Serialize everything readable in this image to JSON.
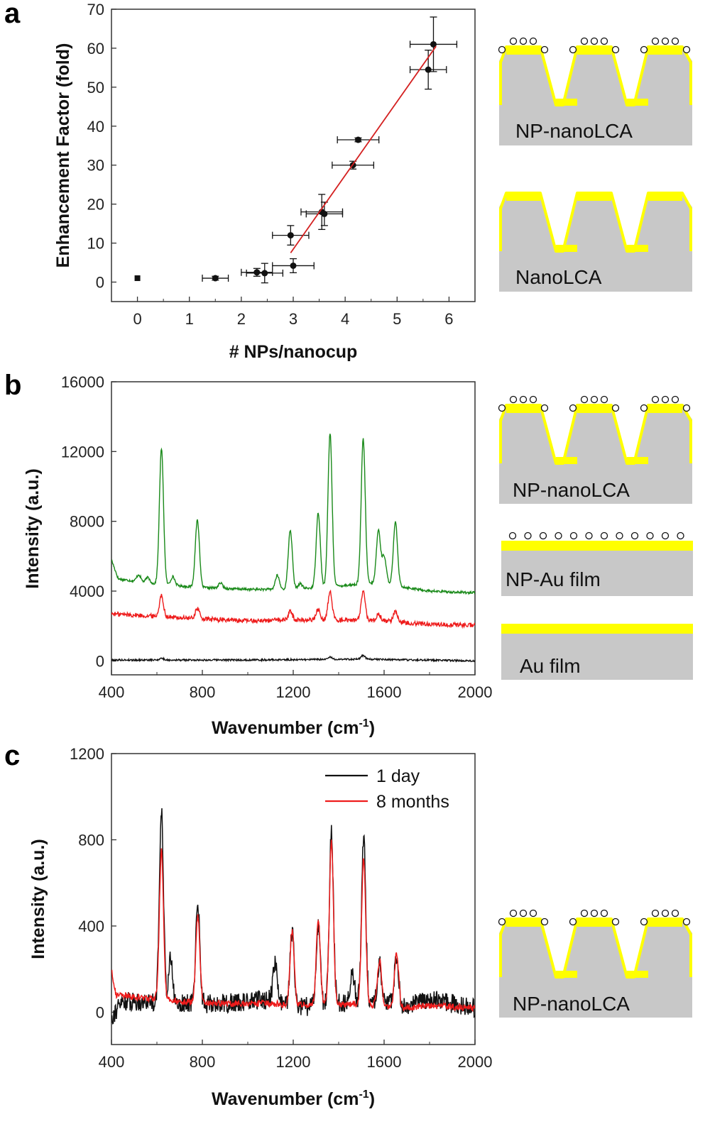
{
  "panels": {
    "a": "a",
    "b": "b",
    "c": "c"
  },
  "schematic_labels": {
    "np_nanolca": "NP-nanoLCA",
    "nanolca": "NanoLCA",
    "np_au_film": "NP-Au film",
    "au_film": "Au film"
  },
  "colors": {
    "green": "#1a8a1a",
    "red": "#ee1c1c",
    "black": "#111111",
    "gold": "#ffff00",
    "substrate": "#c8c8c8",
    "fit_line": "#d42020"
  },
  "chart_data": [
    {
      "id": "a",
      "type": "scatter",
      "xlabel": "# NPs/nanocup",
      "ylabel": "Enhancement Factor (fold)",
      "xlim": [
        -0.5,
        6.5
      ],
      "ylim": [
        -5,
        70
      ],
      "xticks": [
        0,
        1,
        2,
        3,
        4,
        5,
        6
      ],
      "yticks": [
        0,
        10,
        20,
        30,
        40,
        50,
        60,
        70
      ],
      "points": [
        {
          "x": 0,
          "y": 1,
          "xerr": 0,
          "yerr": 0
        },
        {
          "x": 1.5,
          "y": 1,
          "xerr": 0.25,
          "yerr": 0.5
        },
        {
          "x": 2.3,
          "y": 2.5,
          "xerr": 0.3,
          "yerr": 1
        },
        {
          "x": 2.45,
          "y": 2.3,
          "xerr": 0.35,
          "yerr": 2.5
        },
        {
          "x": 3.0,
          "y": 4.2,
          "xerr": 0.4,
          "yerr": 1.8
        },
        {
          "x": 2.95,
          "y": 12,
          "xerr": 0.35,
          "yerr": 2.5
        },
        {
          "x": 3.55,
          "y": 18,
          "xerr": 0.4,
          "yerr": 4.5
        },
        {
          "x": 3.6,
          "y": 17.5,
          "xerr": 0.35,
          "yerr": 3
        },
        {
          "x": 4.15,
          "y": 30,
          "xerr": 0.4,
          "yerr": 1
        },
        {
          "x": 4.25,
          "y": 36.5,
          "xerr": 0.4,
          "yerr": 0.5
        },
        {
          "x": 5.6,
          "y": 54.5,
          "xerr": 0.35,
          "yerr": 5
        },
        {
          "x": 5.7,
          "y": 61,
          "xerr": 0.45,
          "yerr": 7
        }
      ],
      "fit": {
        "x": [
          2.95,
          5.75
        ],
        "y": [
          7.5,
          60.5
        ]
      }
    },
    {
      "id": "b",
      "type": "line",
      "xlabel": "Wavenumber (cm-1)",
      "ylabel": "Intensity (a.u.)",
      "xlim": [
        400,
        2000
      ],
      "ylim": [
        -800,
        16000
      ],
      "xticks": [
        400,
        800,
        1200,
        1600,
        2000
      ],
      "yticks": [
        0,
        4000,
        8000,
        12000,
        16000
      ],
      "series": [
        {
          "color": "green",
          "baseline": [
            [
              400,
              5800
            ],
            [
              430,
              4700
            ],
            [
              600,
              4400
            ],
            [
              800,
              4200
            ],
            [
              1000,
              4100
            ],
            [
              1200,
              4100
            ],
            [
              1400,
              4300
            ],
            [
              1500,
              4400
            ],
            [
              1600,
              4500
            ],
            [
              1700,
              4200
            ],
            [
              1800,
              4000
            ],
            [
              2000,
              3900
            ]
          ],
          "peaks": [
            [
              620,
              7800
            ],
            [
              778,
              3900
            ],
            [
              1130,
              800
            ],
            [
              1187,
              3400
            ],
            [
              1310,
              4300
            ],
            [
              1362,
              8800
            ],
            [
              1508,
              8300
            ],
            [
              1575,
              3000
            ],
            [
              1600,
              1500
            ],
            [
              1650,
              3600
            ],
            [
              520,
              400
            ],
            [
              560,
              300
            ],
            [
              670,
              500
            ],
            [
              880,
              300
            ],
            [
              1230,
              300
            ]
          ],
          "noise": 70
        },
        {
          "color": "red",
          "baseline": [
            [
              400,
              2700
            ],
            [
              600,
              2550
            ],
            [
              800,
              2400
            ],
            [
              1000,
              2300
            ],
            [
              1200,
              2350
            ],
            [
              1400,
              2350
            ],
            [
              1600,
              2300
            ],
            [
              1800,
              2100
            ],
            [
              2000,
              2050
            ]
          ],
          "peaks": [
            [
              620,
              1200
            ],
            [
              778,
              600
            ],
            [
              1187,
              500
            ],
            [
              1310,
              600
            ],
            [
              1362,
              1600
            ],
            [
              1508,
              1600
            ],
            [
              1575,
              400
            ],
            [
              1650,
              600
            ]
          ],
          "noise": 130
        },
        {
          "color": "black",
          "baseline": [
            [
              400,
              50
            ],
            [
              1000,
              50
            ],
            [
              1500,
              100
            ],
            [
              2000,
              0
            ]
          ],
          "peaks": [
            [
              620,
              100
            ],
            [
              1362,
              120
            ],
            [
              1508,
              200
            ]
          ],
          "noise": 50
        }
      ]
    },
    {
      "id": "c",
      "type": "line",
      "xlabel": "Wavenumber (cm-1)",
      "ylabel": "Intensity (a.u.)",
      "xlim": [
        400,
        2000
      ],
      "ylim": [
        -150,
        1200
      ],
      "xticks": [
        400,
        800,
        1200,
        1600,
        2000
      ],
      "yticks": [
        0,
        400,
        800,
        1200
      ],
      "legend": [
        {
          "label": "1 day",
          "color": "black"
        },
        {
          "label": "8 months",
          "color": "red"
        }
      ],
      "series": [
        {
          "name": "1 day",
          "color": "black",
          "baseline": [
            [
              400,
              -20
            ],
            [
              450,
              50
            ],
            [
              600,
              50
            ],
            [
              700,
              40
            ],
            [
              900,
              40
            ],
            [
              1100,
              60
            ],
            [
              1200,
              20
            ],
            [
              1300,
              30
            ],
            [
              1500,
              50
            ],
            [
              1700,
              30
            ],
            [
              1800,
              60
            ],
            [
              2000,
              20
            ]
          ],
          "peaks": [
            [
              620,
              900
            ],
            [
              660,
              200
            ],
            [
              780,
              470
            ],
            [
              1120,
              180
            ],
            [
              1195,
              350
            ],
            [
              1310,
              380
            ],
            [
              1368,
              800
            ],
            [
              1460,
              150
            ],
            [
              1510,
              760
            ],
            [
              1580,
              190
            ],
            [
              1655,
              230
            ]
          ],
          "noise": 45
        },
        {
          "name": "8 months",
          "color": "red",
          "baseline": [
            [
              400,
              200
            ],
            [
              420,
              80
            ],
            [
              600,
              60
            ],
            [
              700,
              50
            ],
            [
              900,
              40
            ],
            [
              1100,
              40
            ],
            [
              1300,
              30
            ],
            [
              1500,
              40
            ],
            [
              1700,
              20
            ],
            [
              1800,
              30
            ],
            [
              2000,
              20
            ]
          ],
          "peaks": [
            [
              620,
              690
            ],
            [
              780,
              400
            ],
            [
              1195,
              340
            ],
            [
              1310,
              400
            ],
            [
              1368,
              760
            ],
            [
              1510,
              680
            ],
            [
              1580,
              210
            ],
            [
              1655,
              250
            ]
          ],
          "noise": 15
        }
      ]
    }
  ]
}
